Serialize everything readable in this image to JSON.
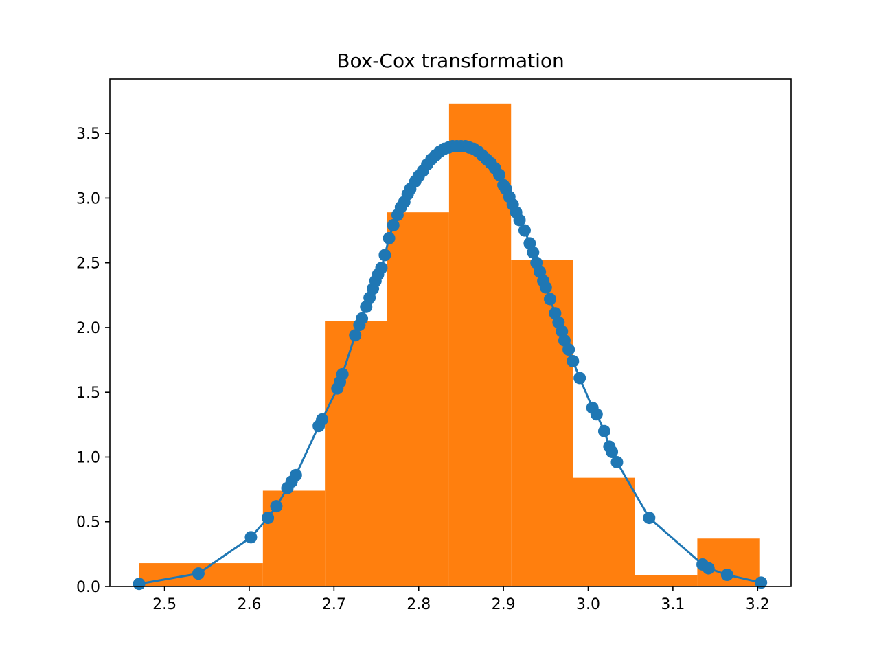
{
  "chart_data": {
    "type": "bar",
    "title": "Box-Cox transformation",
    "xlabel": "",
    "ylabel": "",
    "xlim": [
      2.4355,
      3.2395
    ],
    "ylim": [
      0.0,
      3.92
    ],
    "x_ticks": [
      2.5,
      2.6,
      2.7,
      2.8,
      2.9,
      3.0,
      3.1,
      3.2
    ],
    "x_tick_labels": [
      "2.5",
      "2.6",
      "2.7",
      "2.8",
      "2.9",
      "3.0",
      "3.1",
      "3.2"
    ],
    "y_ticks": [
      0.0,
      0.5,
      1.0,
      1.5,
      2.0,
      2.5,
      3.0,
      3.5
    ],
    "y_tick_labels": [
      "0.0",
      "0.5",
      "1.0",
      "1.5",
      "2.0",
      "2.5",
      "3.0",
      "3.5"
    ],
    "grid": false,
    "legend": "none",
    "histogram": {
      "color": "#ff7f0e",
      "bin_edges": [
        2.4696,
        2.5428,
        2.6161,
        2.6893,
        2.7625,
        2.8358,
        2.909,
        2.9823,
        3.0555,
        3.1288,
        3.202
      ],
      "heights": [
        0.18,
        0.18,
        0.74,
        2.05,
        2.89,
        3.73,
        2.52,
        0.84,
        0.09,
        0.37
      ]
    },
    "pdf_curve": {
      "color": "#1f77b4",
      "marker": "circle",
      "mean": 2.85,
      "sd": 0.1175,
      "x": [
        2.47,
        2.54,
        2.602,
        2.622,
        2.632,
        2.645,
        2.65,
        2.655,
        2.682,
        2.686,
        2.704,
        2.707,
        2.71,
        2.725,
        2.73,
        2.733,
        2.738,
        2.742,
        2.746,
        2.749,
        2.752,
        2.756,
        2.76,
        2.765,
        2.77,
        2.775,
        2.779,
        2.783,
        2.787,
        2.79,
        2.796,
        2.8,
        2.805,
        2.81,
        2.815,
        2.82,
        2.825,
        2.83,
        2.835,
        2.84,
        2.845,
        2.85,
        2.855,
        2.86,
        2.865,
        2.87,
        2.875,
        2.88,
        2.885,
        2.89,
        2.895,
        2.9,
        2.903,
        2.907,
        2.911,
        2.915,
        2.919,
        2.925,
        2.931,
        2.935,
        2.939,
        2.943,
        2.947,
        2.95,
        2.955,
        2.961,
        2.965,
        2.969,
        2.972,
        2.977,
        2.982,
        2.99,
        3.005,
        3.01,
        3.019,
        3.025,
        3.028,
        3.034,
        3.072,
        3.135,
        3.142,
        3.164,
        3.204
      ],
      "y": [
        0.02,
        0.1,
        0.38,
        0.53,
        0.62,
        0.76,
        0.81,
        0.86,
        1.24,
        1.29,
        1.53,
        1.58,
        1.64,
        1.94,
        2.02,
        2.07,
        2.16,
        2.23,
        2.3,
        2.36,
        2.41,
        2.46,
        2.56,
        2.69,
        2.79,
        2.87,
        2.93,
        2.97,
        3.03,
        3.07,
        3.13,
        3.17,
        3.21,
        3.26,
        3.3,
        3.33,
        3.36,
        3.38,
        3.39,
        3.4,
        3.4,
        3.4,
        3.4,
        3.39,
        3.38,
        3.36,
        3.33,
        3.3,
        3.27,
        3.23,
        3.18,
        3.1,
        3.07,
        3.01,
        2.95,
        2.89,
        2.83,
        2.75,
        2.65,
        2.58,
        2.5,
        2.43,
        2.36,
        2.31,
        2.22,
        2.11,
        2.04,
        1.97,
        1.9,
        1.83,
        1.74,
        1.61,
        1.38,
        1.33,
        1.2,
        1.08,
        1.04,
        0.96,
        0.53,
        0.17,
        0.14,
        0.09,
        0.03
      ]
    }
  }
}
